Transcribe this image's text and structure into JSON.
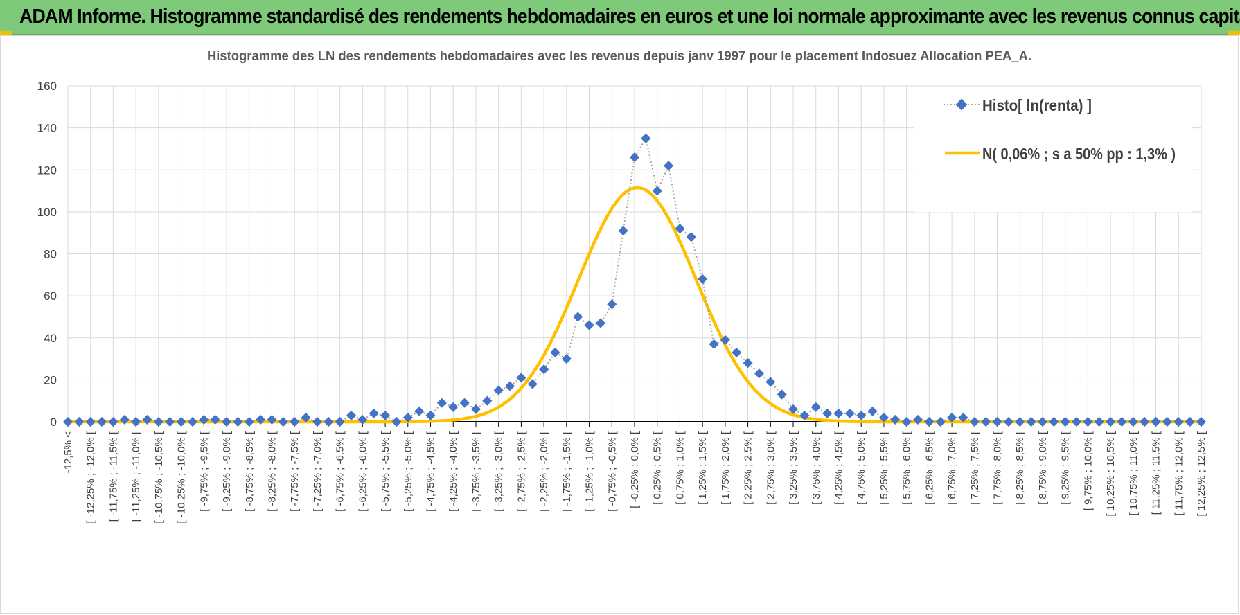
{
  "banner": {
    "title": "ADAM Informe. Histogramme standardisé des rendements hebdomadaires en euros et une loi normale approximante avec les revenus connus capitalisés"
  },
  "colors": {
    "banner_bg": "#7ec97a",
    "accent_corner": "#f0c000",
    "histo_series": "#4472c4",
    "histo_line": "#a6a6a6",
    "normal_curve": "#ffc000",
    "grid": "#d9d9d9",
    "axis": "#000000"
  },
  "chart_data": {
    "type": "line",
    "title": "Histogramme  des LN des rendements hebdomadaires avec les revenus depuis janv 1997 pour le placement Indosuez Allocation PEA_A.",
    "xlabel": "",
    "ylabel": "",
    "ylim": [
      0,
      160
    ],
    "yticks": [
      0,
      20,
      40,
      60,
      80,
      100,
      120,
      140,
      160
    ],
    "grid": true,
    "legend_position": "top-right",
    "categories": [
      "-12,5% <",
      "[ -12,25% ; -12,0% [",
      "[ -11,75% ; -11,5% [",
      "[ -11,25% ; -11,0% [",
      "[ -10,75% ; -10,5% [",
      "[ -10,25% ; -10,0% [",
      "[ -9,75% ; -9,5% [",
      "[ -9,25% ; -9,0% [",
      "[ -8,75% ; -8,5% [",
      "[ -8,25% ; -8,0% [",
      "[ -7,75% ; -7,5% [",
      "[ -7,25% ; -7,0% [",
      "[ -6,75% ; -6,5% [",
      "[ -6,25% ; -6,0% [",
      "[ -5,75% ; -5,5% [",
      "[ -5,25% ; -5,0% [",
      "[ -4,75% ; -4,5% [",
      "[ -4,25% ; -4,0% [",
      "[ -3,75% ; -3,5% [",
      "[ -3,25% ; -3,0% [",
      "[ -2,75% ; -2,5% [",
      "[ -2,25% ; -2,0% [",
      "[ -1,75% ; -1,5% [",
      "[ -1,25% ; -1,0% [",
      "[ -0,75% ; -0,5% [",
      "[ -0,25% ; 0,0% [",
      "[ 0,25% ; 0,5% [",
      "[ 0,75% ; 1,0% [",
      "[ 1,25% ; 1,5% [",
      "[ 1,75% ; 2,0% [",
      "[ 2,25% ; 2,5% [",
      "[ 2,75% ; 3,0% [",
      "[ 3,25% ; 3,5% [",
      "[ 3,75% ; 4,0% [",
      "[ 4,25% ; 4,5% [",
      "[ 4,75% ; 5,0% [",
      "[ 5,25% ; 5,5% [",
      "[ 5,75% ; 6,0% [",
      "[ 6,25% ; 6,5% [",
      "[ 6,75% ; 7,0% [",
      "[ 7,25% ; 7,5% [",
      "[ 7,75% ; 8,0% [",
      "[ 8,25% ; 8,5% [",
      "[ 8,75% ; 9,0% [",
      "[ 9,25% ; 9,5% [",
      "[ 9,75% ; 10,0% [",
      "[ 10,25% ; 10,5% [",
      "[ 10,75% ; 11,0% [",
      "[ 11,25% ; 11,5% [",
      "[ 11,75% ; 12,0% [",
      "[ 12,25% ; 12,5% ["
    ],
    "x": [
      -12.5,
      -12.25,
      -12.0,
      -11.75,
      -11.5,
      -11.25,
      -11.0,
      -10.75,
      -10.5,
      -10.25,
      -10.0,
      -9.75,
      -9.5,
      -9.25,
      -9.0,
      -8.75,
      -8.5,
      -8.25,
      -8.0,
      -7.75,
      -7.5,
      -7.25,
      -7.0,
      -6.75,
      -6.5,
      -6.25,
      -6.0,
      -5.75,
      -5.5,
      -5.25,
      -5.0,
      -4.75,
      -4.5,
      -4.25,
      -4.0,
      -3.75,
      -3.5,
      -3.25,
      -3.0,
      -2.75,
      -2.5,
      -2.25,
      -2.0,
      -1.75,
      -1.5,
      -1.25,
      -1.0,
      -0.75,
      -0.5,
      -0.25,
      0.0,
      0.25,
      0.5,
      0.75,
      1.0,
      1.25,
      1.5,
      1.75,
      2.0,
      2.25,
      2.5,
      2.75,
      3.0,
      3.25,
      3.5,
      3.75,
      4.0,
      4.25,
      4.5,
      4.75,
      5.0,
      5.25,
      5.5,
      5.75,
      6.0,
      6.25,
      6.5,
      6.75,
      7.0,
      7.25,
      7.5,
      7.75,
      8.0,
      8.25,
      8.5,
      8.75,
      9.0,
      9.25,
      9.5,
      9.75,
      10.0,
      10.25,
      10.5,
      10.75,
      11.0,
      11.25,
      11.5,
      11.75,
      12.0,
      12.25,
      12.5
    ],
    "series": [
      {
        "name": "Histo[ ln(renta) ]",
        "values": [
          0,
          0,
          0,
          0,
          0,
          1,
          0,
          1,
          0,
          0,
          0,
          0,
          1,
          1,
          0,
          0,
          0,
          1,
          1,
          0,
          0,
          2,
          0,
          0,
          0,
          3,
          1,
          4,
          3,
          0,
          2,
          5,
          3,
          9,
          7,
          9,
          6,
          10,
          15,
          17,
          21,
          18,
          25,
          33,
          30,
          50,
          46,
          47,
          56,
          91,
          126,
          135,
          110,
          122,
          92,
          88,
          68,
          37,
          39,
          33,
          28,
          23,
          19,
          13,
          6,
          3,
          7,
          4,
          4,
          4,
          3,
          5,
          2,
          1,
          0,
          1,
          0,
          0,
          2,
          2,
          0,
          0,
          0,
          0,
          0,
          0,
          0,
          0,
          0,
          0,
          0,
          0,
          0,
          0,
          0,
          0,
          0,
          0,
          0,
          0,
          0
        ]
      },
      {
        "name": "N( 0,06% ; s a 50% pp : 1,3% )",
        "mean": 0.06,
        "sd": 1.3,
        "peak": 111.5
      }
    ]
  }
}
